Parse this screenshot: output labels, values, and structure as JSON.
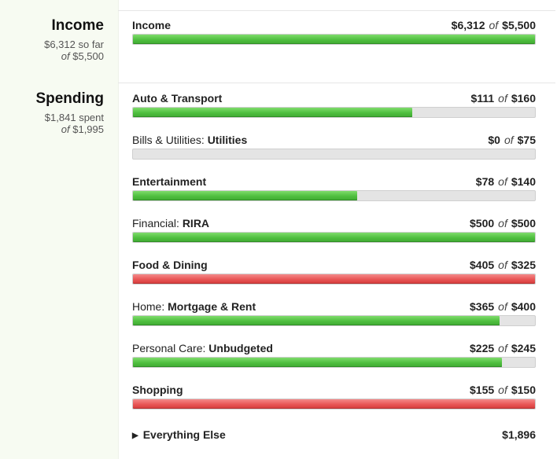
{
  "income_summary": {
    "heading": "Income",
    "amount": "$6,312",
    "amount_suffix": "so far",
    "of_word": "of",
    "target": "$5,500"
  },
  "spending_summary": {
    "heading": "Spending",
    "amount": "$1,841",
    "amount_suffix": "spent",
    "of_word": "of",
    "target": "$1,995"
  },
  "of_word": "of",
  "income_row": {
    "label": "Income",
    "spent": "$6,312",
    "budget": "$5,500",
    "fraction": 1.0,
    "status": "green"
  },
  "spending_rows": [
    {
      "category": "",
      "label": "Auto & Transport",
      "spent": "$111",
      "budget": "$160",
      "fraction": 0.694,
      "status": "green"
    },
    {
      "category": "Bills & Utilities:",
      "label": "Utilities",
      "spent": "$0",
      "budget": "$75",
      "fraction": 0.0,
      "status": "green"
    },
    {
      "category": "",
      "label": "Entertainment",
      "spent": "$78",
      "budget": "$140",
      "fraction": 0.557,
      "status": "green"
    },
    {
      "category": "Financial:",
      "label": "RIRA",
      "spent": "$500",
      "budget": "$500",
      "fraction": 1.0,
      "status": "green"
    },
    {
      "category": "",
      "label": "Food & Dining",
      "spent": "$405",
      "budget": "$325",
      "fraction": 1.0,
      "status": "red"
    },
    {
      "category": "Home:",
      "label": "Mortgage & Rent",
      "spent": "$365",
      "budget": "$400",
      "fraction": 0.9125,
      "status": "green"
    },
    {
      "category": "Personal Care:",
      "label": "Unbudgeted",
      "spent": "$225",
      "budget": "$245",
      "fraction": 0.918,
      "status": "green"
    },
    {
      "category": "",
      "label": "Shopping",
      "spent": "$155",
      "budget": "$150",
      "fraction": 1.0,
      "status": "red"
    }
  ],
  "everything_else": {
    "label": "Everything Else",
    "amount": "$1,896"
  },
  "colors": {
    "on_track": "#4fbf3f",
    "over_budget": "#e85555",
    "bar_track": "#e4e4e4",
    "sidebar_bg": "#f7fbf2"
  }
}
